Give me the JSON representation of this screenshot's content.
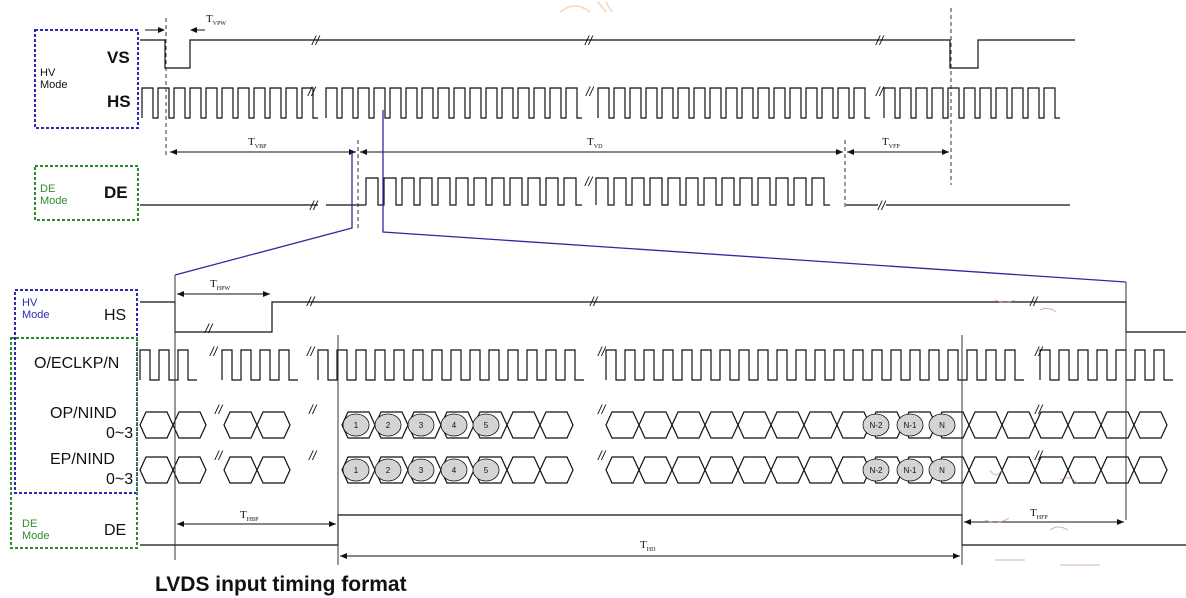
{
  "top": {
    "hv_mode_label": "HV\nMode",
    "de_mode_label": "DE\nMode",
    "signals": {
      "vs": "VS",
      "hs": "HS",
      "de": "DE"
    },
    "timings": {
      "tvpw": {
        "main": "T",
        "sub": "VPW"
      },
      "tvbp": {
        "main": "T",
        "sub": "VBP"
      },
      "tvd": {
        "main": "T",
        "sub": "VD"
      },
      "tvfp": {
        "main": "T",
        "sub": "VFP"
      }
    }
  },
  "bottom": {
    "hv_mode_label": "HV\nMode",
    "de_mode_label": "DE\nMode",
    "signals": {
      "hs": "HS",
      "clk": "O/ECLKP/N",
      "op_a": "OP/NIND",
      "op_b": "0~3",
      "ep_a": "EP/NIND",
      "ep_b": "0~3",
      "de": "DE"
    },
    "timings": {
      "thpw": {
        "main": "T",
        "sub": "HPW"
      },
      "thbp": {
        "main": "T",
        "sub": "HBP"
      },
      "thd": {
        "main": "T",
        "sub": "HD"
      },
      "thfp": {
        "main": "T",
        "sub": "HFP"
      }
    },
    "data_slots": [
      "1",
      "2",
      "3",
      "4",
      "5",
      "N-2",
      "N-1",
      "N"
    ]
  },
  "break_mark": "//",
  "title": "LVDS input timing format",
  "colors": {
    "hv_box": "#2b2bb0",
    "de_box": "#2e8b2e",
    "zoom_lines": "#2b2b9e",
    "slot_fill": "#d4d4d4"
  }
}
